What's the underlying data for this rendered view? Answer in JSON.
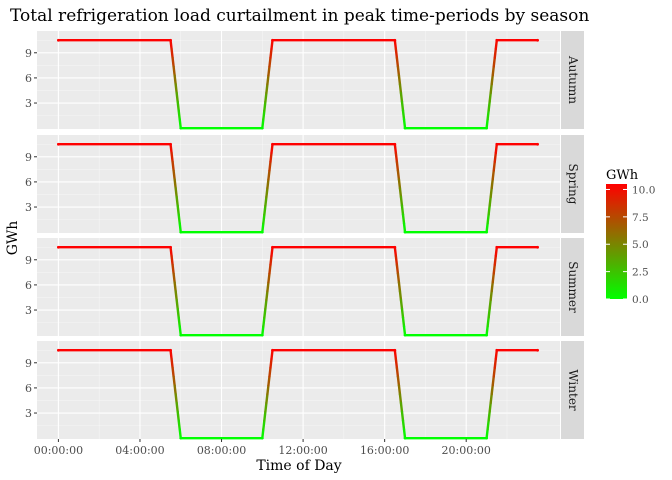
{
  "chart_data": {
    "type": "line",
    "title": "Total refrigeration load curtailment in peak time-periods by season",
    "xlabel": "Time of Day",
    "ylabel": "GWh",
    "x_unit": "hour of day",
    "xlim_hours": [
      -1.05,
      24.6
    ],
    "x_ticks": [
      {
        "hour": 0,
        "label": "00:00:00"
      },
      {
        "hour": 4,
        "label": "04:00:00"
      },
      {
        "hour": 8,
        "label": "08:00:00"
      },
      {
        "hour": 12,
        "label": "12:00:00"
      },
      {
        "hour": 16,
        "label": "16:00:00"
      },
      {
        "hour": 20,
        "label": "20:00:00"
      }
    ],
    "ylim": [
      -0.1,
      11.6
    ],
    "y_ticks": [
      3,
      6,
      9
    ],
    "grid": true,
    "legend": {
      "title": "GWh",
      "placement": "right",
      "type": "color-gradient",
      "range": [
        0,
        10.5
      ],
      "ticks": [
        {
          "value": 10.0,
          "label": "10.0"
        },
        {
          "value": 7.5,
          "label": "7.5"
        },
        {
          "value": 5.0,
          "label": "5.0"
        },
        {
          "value": 2.5,
          "label": "2.5"
        },
        {
          "value": 0.0,
          "label": "0.0"
        }
      ],
      "color_low": "#00ff00",
      "color_high": "#ff0000"
    },
    "series": [
      {
        "facet": "Autumn",
        "x": [
          0,
          5.5,
          6.0,
          10.0,
          10.5,
          16.5,
          17.0,
          21.0,
          21.5,
          23.5
        ],
        "y": [
          10.5,
          10.5,
          0,
          0,
          10.5,
          10.5,
          0,
          0,
          10.5,
          10.5
        ]
      },
      {
        "facet": "Spring",
        "x": [
          0,
          5.5,
          6.0,
          10.0,
          10.5,
          16.5,
          17.0,
          21.0,
          21.5,
          23.5
        ],
        "y": [
          10.5,
          10.5,
          0,
          0,
          10.5,
          10.5,
          0,
          0,
          10.5,
          10.5
        ]
      },
      {
        "facet": "Summer",
        "x": [
          0,
          5.5,
          6.0,
          10.0,
          10.5,
          16.5,
          17.0,
          21.0,
          21.5,
          23.5
        ],
        "y": [
          10.5,
          10.5,
          0,
          0,
          10.5,
          10.5,
          0,
          0,
          10.5,
          10.5
        ]
      },
      {
        "facet": "Winter",
        "x": [
          0,
          5.5,
          6.0,
          10.0,
          10.5,
          16.5,
          17.0,
          21.0,
          21.5,
          23.5
        ],
        "y": [
          10.5,
          10.5,
          0,
          0,
          10.5,
          10.5,
          0,
          0,
          10.5,
          10.5
        ]
      }
    ],
    "colors": {
      "panel_background": "#ebebeb",
      "grid": "#ffffff",
      "strip_background": "#d9d9d9"
    }
  }
}
